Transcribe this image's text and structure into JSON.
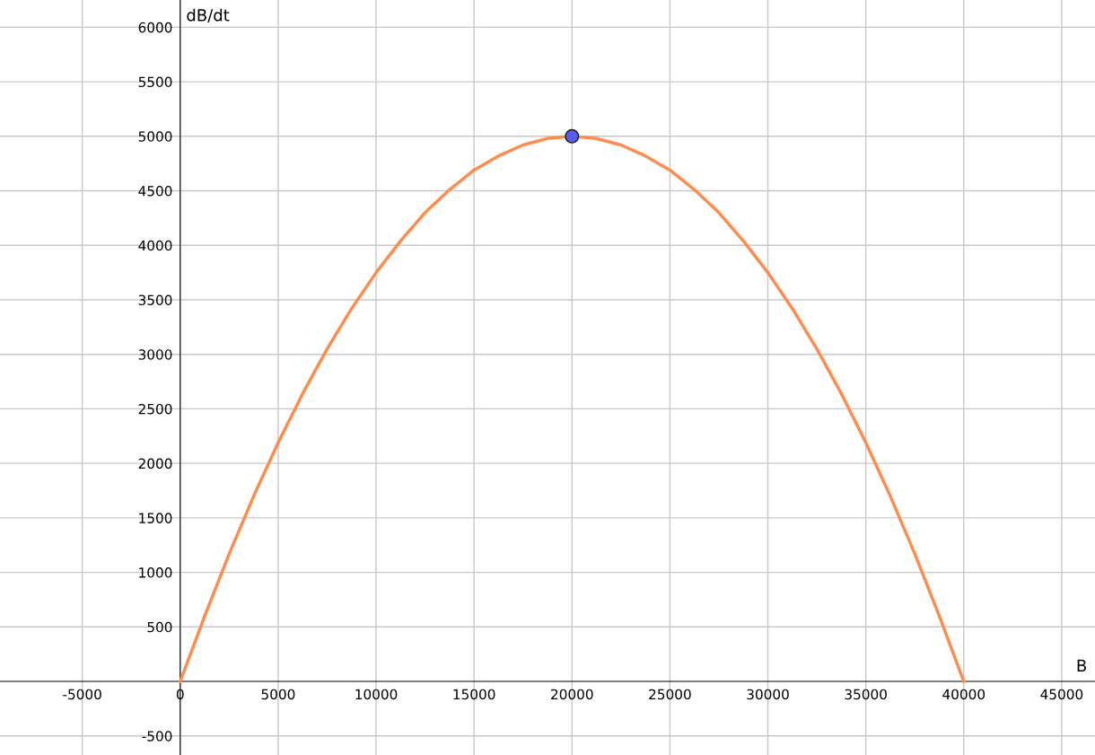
{
  "chart_data": {
    "type": "line",
    "xlabel": "B",
    "ylabel": "dB/dt",
    "xlim": [
      -9200,
      46700
    ],
    "ylim": [
      -675,
      6250
    ],
    "xticks": [
      -5000,
      0,
      5000,
      10000,
      15000,
      20000,
      25000,
      30000,
      35000,
      40000,
      45000
    ],
    "yticks": [
      -500,
      500,
      1000,
      1500,
      2000,
      2500,
      3000,
      3500,
      4000,
      4500,
      5000,
      5500,
      6000
    ],
    "grid": true,
    "series": [
      {
        "color": "#ff8c4f",
        "line_style": "solid",
        "marker": "none",
        "x": [
          0,
          1250,
          2500,
          3750,
          5000,
          6250,
          7500,
          8750,
          10000,
          11250,
          12500,
          13750,
          15000,
          16250,
          17500,
          18750,
          20000,
          21250,
          22500,
          23750,
          25000,
          26250,
          27500,
          28750,
          30000,
          31250,
          32500,
          33750,
          35000,
          36250,
          37500,
          38750,
          40000
        ],
        "values": [
          0,
          600,
          1170,
          1700,
          2190,
          2640,
          3050,
          3420,
          3750,
          4040,
          4300,
          4510,
          4690,
          4820,
          4920,
          4980,
          5000,
          4980,
          4920,
          4820,
          4690,
          4510,
          4300,
          4040,
          3750,
          3420,
          3050,
          2640,
          2190,
          1700,
          1170,
          600,
          0
        ]
      },
      {
        "type": "scatter",
        "color": "#5b5bf0",
        "marker": "circle",
        "x": [
          20000
        ],
        "values": [
          5000
        ]
      }
    ]
  }
}
